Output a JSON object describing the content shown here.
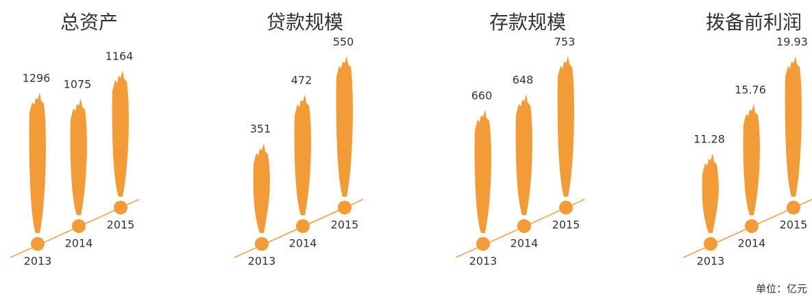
{
  "chart_data": [
    {
      "type": "bar",
      "title": "总资产",
      "categories": [
        "2013",
        "2014",
        "2015"
      ],
      "values": [
        1296,
        1075,
        1164
      ],
      "color": "#f39b36"
    },
    {
      "type": "bar",
      "title": "贷款规模",
      "categories": [
        "2013",
        "2014",
        "2015"
      ],
      "values": [
        351,
        472,
        550
      ],
      "color": "#f39b36"
    },
    {
      "type": "bar",
      "title": "存款规模",
      "categories": [
        "2013",
        "2014",
        "2015"
      ],
      "values": [
        660,
        648,
        753
      ],
      "color": "#f39b36"
    },
    {
      "type": "bar",
      "title": "拨备前利润",
      "categories": [
        "2013",
        "2014",
        "2015"
      ],
      "values": [
        11.28,
        15.76,
        19.93
      ],
      "color": "#f39b36"
    }
  ],
  "note": "单位：亿元"
}
